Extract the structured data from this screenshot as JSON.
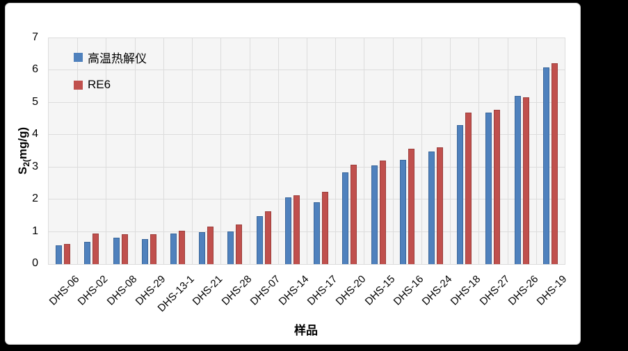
{
  "frame": {
    "background_color": "#000000",
    "card_background": "#ffffff"
  },
  "chart_data": {
    "type": "bar",
    "title": "",
    "categories": [
      "DHS-06",
      "DHS-02",
      "DHS-08",
      "DHS-29",
      "DHS-13-1",
      "DHS-21",
      "DHS-28",
      "DHS-07",
      "DHS-14",
      "DHS-17",
      "DHS-20",
      "DHS-15",
      "DHS-16",
      "DHS-24",
      "DHS-18",
      "DHS-27",
      "DHS-26",
      "DHS-19"
    ],
    "series": [
      {
        "name": "高温热解仪",
        "color": "#4F81BD",
        "border_color": "#3A669A",
        "values": [
          0.58,
          0.68,
          0.82,
          0.77,
          0.95,
          1.0,
          1.02,
          1.48,
          2.07,
          1.92,
          2.84,
          3.05,
          3.23,
          3.49,
          4.3,
          4.69,
          5.21,
          6.09
        ]
      },
      {
        "name": "RE6",
        "color": "#C0504D",
        "border_color": "#9C3E3B",
        "values": [
          0.63,
          0.95,
          0.92,
          0.93,
          1.04,
          1.17,
          1.22,
          1.63,
          2.13,
          2.25,
          3.07,
          3.21,
          3.57,
          3.62,
          4.7,
          4.78,
          5.16,
          6.22
        ]
      }
    ],
    "xlabel": "样品",
    "ylabel": {
      "base": "S",
      "sub": "2(",
      "rest": "mg/g)"
    },
    "ylim": [
      0,
      7
    ],
    "ytick_step": 1,
    "yticks": [
      0,
      1,
      2,
      3,
      4,
      5,
      6,
      7
    ],
    "grid": true,
    "legend_position": "top-left-inside",
    "plot_background": "#f5f5f5",
    "gridline_color": "#dcdcdc"
  }
}
